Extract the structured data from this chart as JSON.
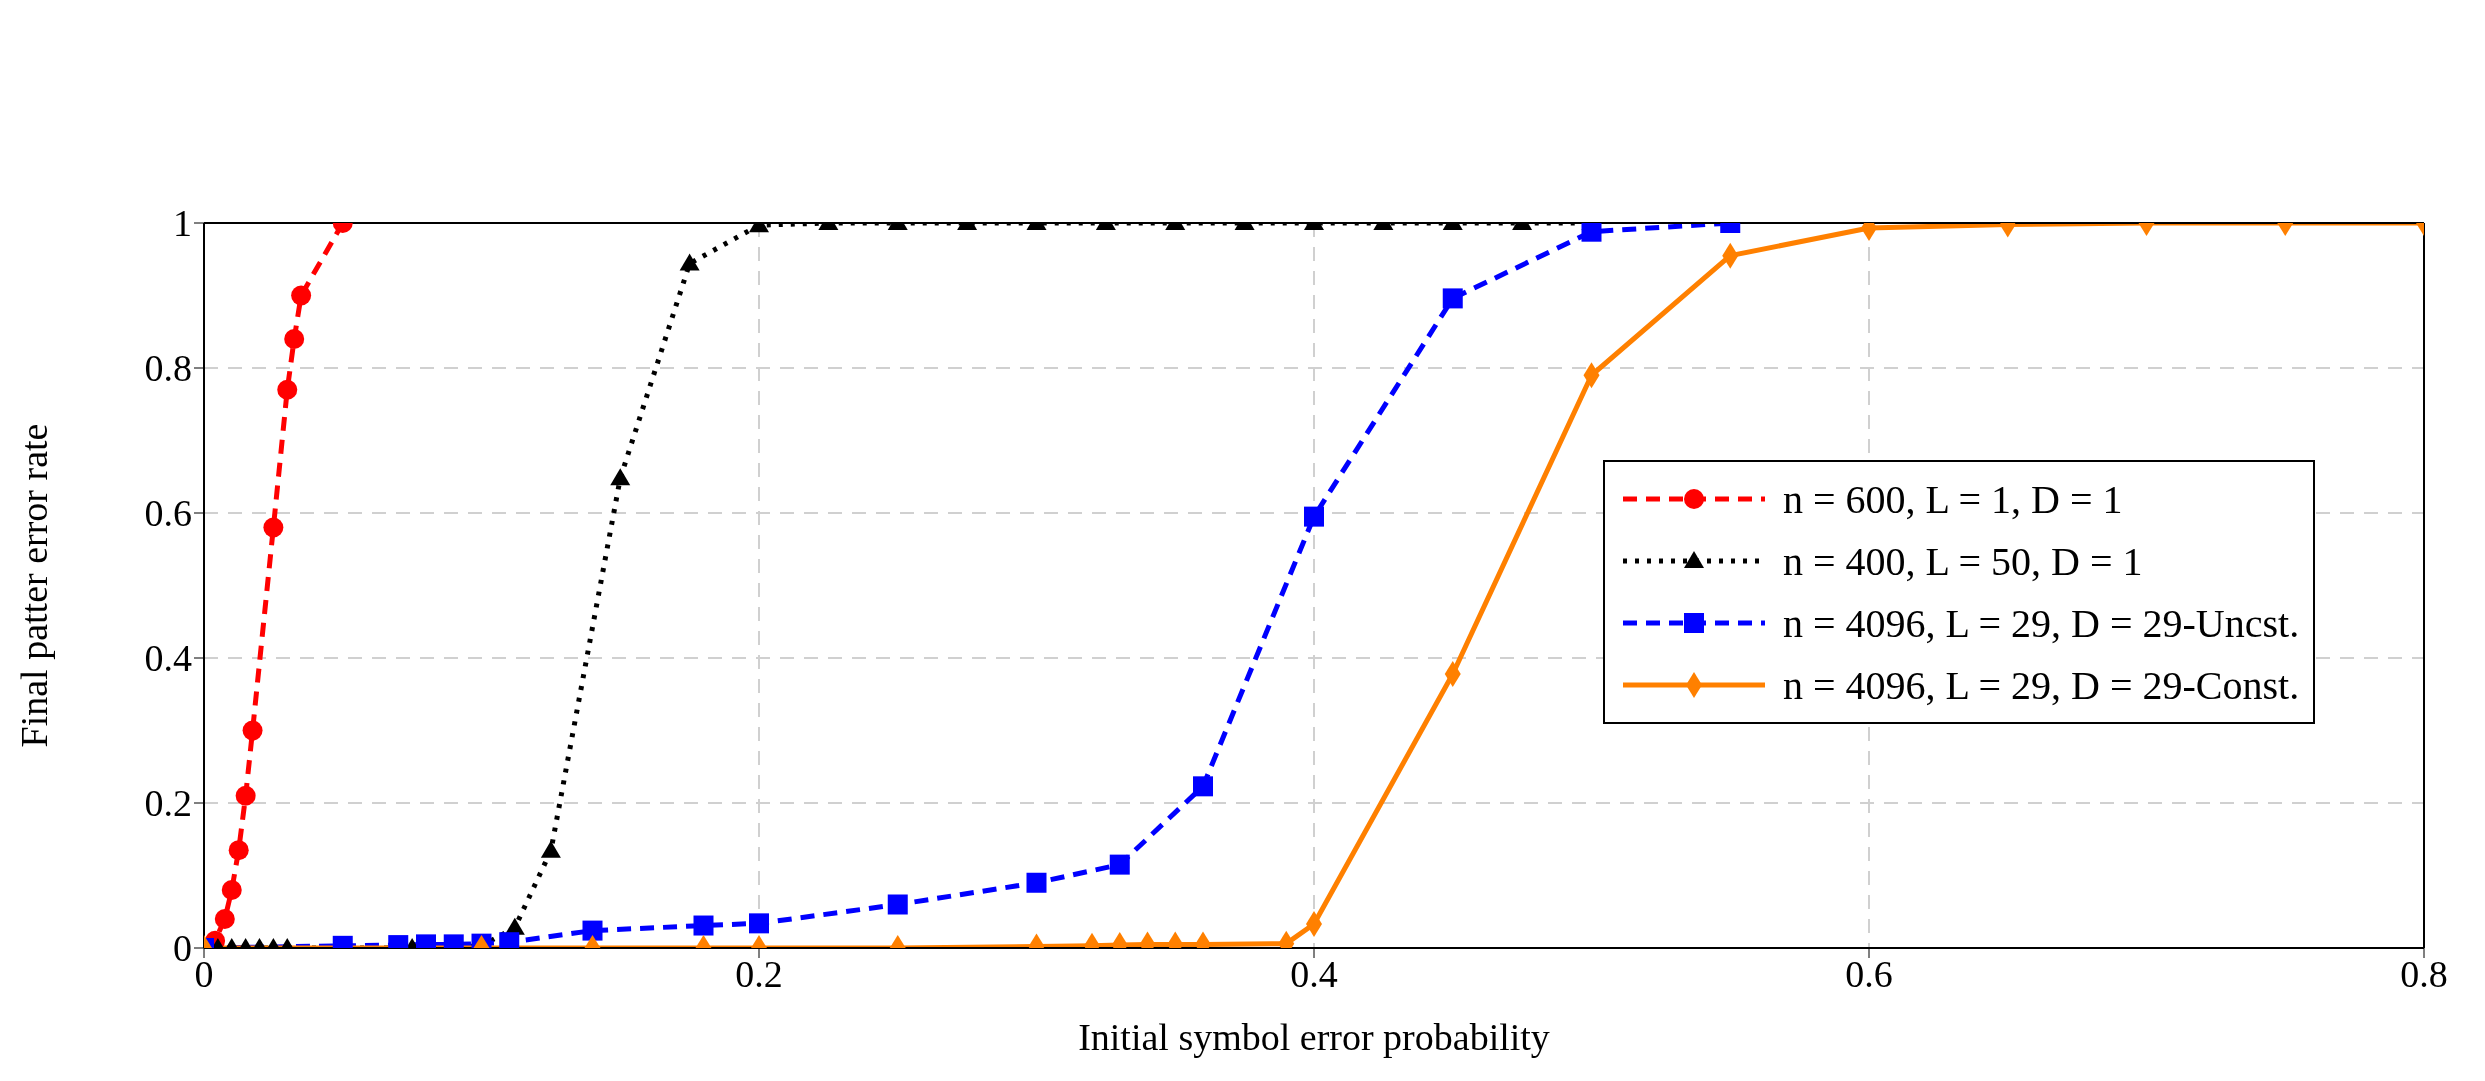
{
  "chart_data": {
    "type": "line",
    "xlabel": "Initial symbol error probability",
    "ylabel": "Final patter error rate",
    "xlim": [
      0,
      0.8
    ],
    "xticks": [
      0,
      0.2,
      0.4,
      0.6,
      0.8
    ],
    "ylim": [
      0,
      1
    ],
    "yticks": [
      0,
      0.2,
      0.4,
      0.6,
      0.8,
      1
    ],
    "grid": true,
    "legend": "right",
    "series": [
      {
        "name": "n = 600, L = 1, D = 1",
        "color": "#ff0000",
        "marker": "circle",
        "line_style": "dashed",
        "x": [
          0,
          0.004,
          0.0075,
          0.01,
          0.0125,
          0.015,
          0.0175,
          0.025,
          0.03,
          0.0325,
          0.035,
          0.05
        ],
        "values": [
          0,
          0.01,
          0.04,
          0.08,
          0.135,
          0.21,
          0.3,
          0.58,
          0.77,
          0.84,
          0.9,
          1
        ]
      },
      {
        "name": "n = 400, L = 50, D = 1",
        "color": "#000000",
        "marker": "triangle",
        "line_style": "dotted",
        "x": [
          0,
          0.005,
          0.01,
          0.015,
          0.02,
          0.025,
          0.03,
          0.075,
          0.1,
          0.112,
          0.125,
          0.15,
          0.175,
          0.2,
          0.225,
          0.25,
          0.275,
          0.3,
          0.325,
          0.35,
          0.375,
          0.4,
          0.425,
          0.45,
          0.475,
          0.5
        ],
        "values": [
          0,
          0,
          0,
          0,
          0,
          0,
          0,
          0,
          0.003,
          0.028,
          0.134,
          0.648,
          0.944,
          0.997,
          1,
          1,
          1,
          1,
          1,
          1,
          1,
          1,
          1,
          1,
          1,
          1
        ]
      },
      {
        "name": "n = 4096, L = 29, D = 29-Uncst.",
        "color": "#0000ff",
        "marker": "square",
        "line_style": "dashed",
        "x": [
          0,
          0.05,
          0.07,
          0.08,
          0.09,
          0.1,
          0.11,
          0.14,
          0.18,
          0.2,
          0.25,
          0.3,
          0.33,
          0.36,
          0.4,
          0.45,
          0.5,
          0.55
        ],
        "values": [
          0,
          0.003,
          0.004,
          0.005,
          0.005,
          0.006,
          0.008,
          0.024,
          0.031,
          0.034,
          0.06,
          0.09,
          0.115,
          0.223,
          0.595,
          0.896,
          0.988,
          1
        ]
      },
      {
        "name": "n = 4096, L = 29, D = 29-Const.",
        "color": "#ff8000",
        "marker": "diamond",
        "line_style": "solid",
        "x": [
          0,
          0.1,
          0.14,
          0.18,
          0.2,
          0.25,
          0.3,
          0.32,
          0.33,
          0.34,
          0.35,
          0.36,
          0.39,
          0.4,
          0.45,
          0.5,
          0.55,
          0.6,
          0.65,
          0.7,
          0.75,
          0.8
        ],
        "values": [
          0,
          0,
          0,
          0,
          0,
          0,
          0.002,
          0.003,
          0.004,
          0.005,
          0.005,
          0.005,
          0.006,
          0.033,
          0.378,
          0.79,
          0.955,
          0.993,
          0.998,
          1,
          1,
          1
        ]
      }
    ]
  }
}
